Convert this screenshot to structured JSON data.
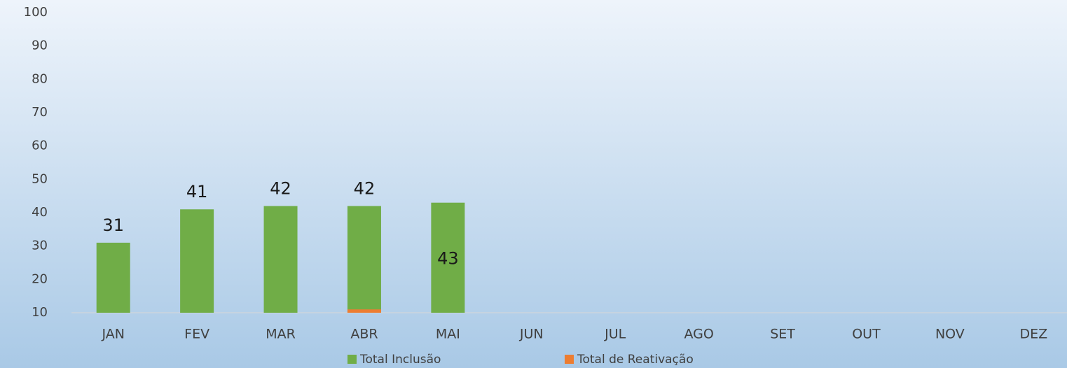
{
  "chart_data": {
    "type": "bar",
    "categories": [
      "JAN",
      "FEV",
      "MAR",
      "ABR",
      "MAI",
      "JUN",
      "JUL",
      "AGO",
      "SET",
      "OUT",
      "NOV",
      "DEZ"
    ],
    "series": [
      {
        "name": "Total Inclusão",
        "color": "#70ad47",
        "values": [
          31,
          41,
          42,
          42,
          43,
          null,
          null,
          null,
          null,
          null,
          null,
          null
        ]
      },
      {
        "name": "Total de Reativação",
        "color": "#ed7d31",
        "values": [
          null,
          null,
          null,
          11,
          null,
          null,
          null,
          null,
          null,
          null,
          null,
          null
        ]
      }
    ],
    "ylim": [
      10,
      100
    ],
    "yticks": [
      10,
      20,
      30,
      40,
      50,
      60,
      70,
      80,
      90,
      100
    ],
    "grid": false,
    "legend": "bottom"
  }
}
